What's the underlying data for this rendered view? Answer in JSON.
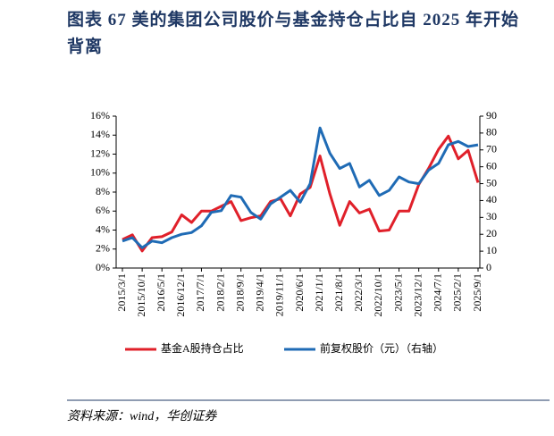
{
  "chart_data": {
    "type": "line",
    "title": "图表 67   美的集团公司股价与基金持仓占比自 2025 年开始背离",
    "source": "资料来源：wind，华创证券",
    "categories": [
      "2015/3/1",
      null,
      "2015/10/1",
      null,
      "2016/5/1",
      null,
      "2016/12/1",
      null,
      "2017/7/1",
      null,
      "2018/2/1",
      null,
      "2018/9/1",
      null,
      "2019/4/1",
      null,
      "2019/11/1",
      null,
      "2020/6/1",
      null,
      "2021/1/1",
      null,
      "2021/8/1",
      null,
      "2022/3/1",
      null,
      "2022/10/1",
      null,
      "2023/5/1",
      null,
      "2023/12/1",
      null,
      "2024/7/1",
      null,
      "2025/2/1",
      null,
      "2025/9/1"
    ],
    "series": [
      {
        "name": "基金A股持仓占比",
        "color": "#e0202a",
        "values": [
          3.0,
          3.5,
          1.8,
          3.2,
          3.3,
          3.8,
          5.6,
          4.8,
          6.0,
          6.0,
          6.5,
          7.0,
          5.0,
          5.3,
          5.5,
          7.0,
          7.3,
          5.5,
          7.8,
          8.5,
          11.8,
          7.8,
          4.5,
          7.0,
          5.8,
          6.2,
          3.9,
          4.0,
          6.0,
          6.0,
          8.8,
          10.5,
          12.5,
          13.9,
          11.5,
          12.4,
          9.0
        ]
      },
      {
        "name": "前复权股价（元）（右轴）",
        "color": "#1f6bb5",
        "axis": "y2",
        "values": [
          16,
          18,
          12,
          16,
          15,
          18,
          20,
          21,
          25,
          33,
          34,
          43,
          42,
          33,
          29,
          38,
          42,
          46,
          39,
          50,
          83,
          68,
          59,
          62,
          48,
          52,
          43,
          46,
          54,
          51,
          50,
          58,
          62,
          73,
          75,
          72,
          73
        ]
      }
    ],
    "ylim": [
      0,
      16
    ],
    "yticks": [
      {
        "value": 0,
        "label": "0%"
      },
      {
        "value": 2,
        "label": "2%"
      },
      {
        "value": 4,
        "label": "4%"
      },
      {
        "value": 6,
        "label": "6%"
      },
      {
        "value": 8,
        "label": "8%"
      },
      {
        "value": 10,
        "label": "10%"
      },
      {
        "value": 12,
        "label": "12%"
      },
      {
        "value": 14,
        "label": "14%"
      },
      {
        "value": 16,
        "label": "16%"
      }
    ],
    "y2lim": [
      0,
      90
    ],
    "y2ticks": [
      0,
      10,
      20,
      30,
      40,
      50,
      60,
      70,
      80,
      90
    ],
    "legend": "bottom"
  }
}
